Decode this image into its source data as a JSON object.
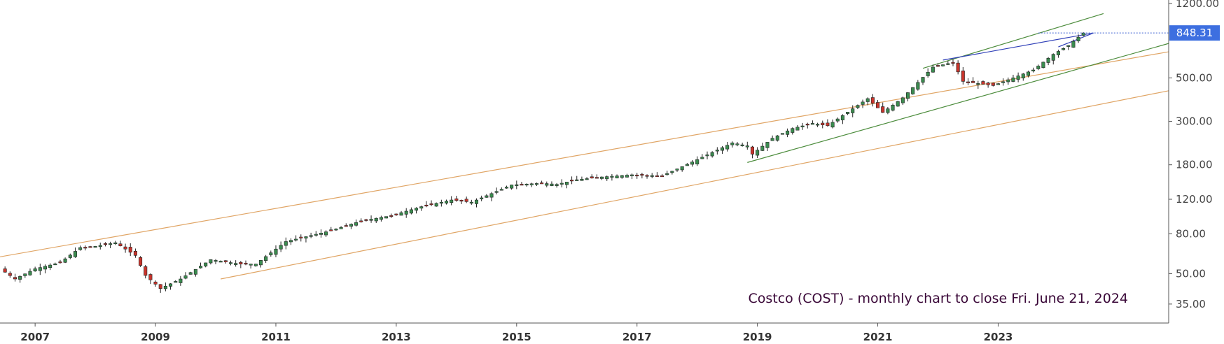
{
  "chart_data": {
    "type": "candlestick",
    "title": "Costco (COST) - monthly chart to close Fri. June 21, 2024",
    "xlabel": "",
    "ylabel": "",
    "y_scale": "log",
    "ylim": [
      28,
      1250
    ],
    "x_range": [
      "2006-06",
      "2025-11"
    ],
    "x_ticks": [
      "2007",
      "2009",
      "2011",
      "2013",
      "2015",
      "2017",
      "2019",
      "2021",
      "2023"
    ],
    "y_ticks": [
      35,
      50,
      80,
      120,
      180,
      300,
      500,
      1200
    ],
    "y_tick_labels": [
      "35.00",
      "50.00",
      "80.00",
      "120.00",
      "180.00",
      "300.00",
      "500.00",
      "1200.00"
    ],
    "last_price": 848.31,
    "last_price_label": "848.31",
    "up_color": "#3a8c4f",
    "down_color": "#c9342c",
    "anchors": [
      [
        "2006-06",
        53
      ],
      [
        "2006-09",
        47
      ],
      [
        "2007-01",
        53
      ],
      [
        "2007-06",
        57
      ],
      [
        "2007-10",
        68
      ],
      [
        "2008-01",
        69
      ],
      [
        "2008-05",
        72
      ],
      [
        "2008-09",
        62
      ],
      [
        "2008-11",
        49
      ],
      [
        "2009-02",
        42
      ],
      [
        "2009-06",
        47
      ],
      [
        "2009-12",
        59
      ],
      [
        "2010-06",
        56
      ],
      [
        "2010-09",
        56
      ],
      [
        "2011-03",
        73
      ],
      [
        "2011-12",
        83
      ],
      [
        "2012-06",
        93
      ],
      [
        "2012-12",
        99
      ],
      [
        "2013-06",
        110
      ],
      [
        "2013-12",
        119
      ],
      [
        "2014-04",
        116
      ],
      [
        "2014-12",
        142
      ],
      [
        "2015-06",
        145
      ],
      [
        "2015-09",
        143
      ],
      [
        "2016-01",
        151
      ],
      [
        "2016-06",
        156
      ],
      [
        "2016-12",
        160
      ],
      [
        "2017-06",
        158
      ],
      [
        "2017-12",
        186
      ],
      [
        "2018-08",
        233
      ],
      [
        "2018-11",
        225
      ],
      [
        "2018-12",
        204
      ],
      [
        "2019-04",
        246
      ],
      [
        "2019-08",
        276
      ],
      [
        "2019-12",
        293
      ],
      [
        "2020-03",
        285
      ],
      [
        "2020-08",
        348
      ],
      [
        "2020-11",
        392
      ],
      [
        "2021-02",
        333
      ],
      [
        "2021-06",
        396
      ],
      [
        "2021-12",
        568
      ],
      [
        "2022-04",
        600
      ],
      [
        "2022-06",
        480
      ],
      [
        "2022-12",
        457
      ],
      [
        "2023-05",
        512
      ],
      [
        "2023-08",
        549
      ],
      [
        "2023-12",
        660
      ],
      [
        "2024-03",
        732
      ],
      [
        "2024-06",
        848.31
      ]
    ],
    "trendlines": [
      {
        "name": "upper-channel",
        "color": "#e0a565",
        "points": [
          [
            "2006-06",
            61
          ],
          [
            "2025-11",
            680
          ]
        ]
      },
      {
        "name": "lower-channel",
        "color": "#e0a565",
        "points": [
          [
            "2010-02",
            47
          ],
          [
            "2025-11",
            430
          ]
        ]
      },
      {
        "name": "green-support",
        "color": "#4c8c3c",
        "points": [
          [
            "2018-11",
            185
          ],
          [
            "2025-11",
            750
          ]
        ]
      },
      {
        "name": "green-resistance",
        "color": "#4c8c3c",
        "points": [
          [
            "2021-10",
            560
          ],
          [
            "2024-10",
            1065
          ]
        ]
      },
      {
        "name": "wedge-top",
        "color": "#3040b8",
        "points": [
          [
            "2022-02",
            617
          ],
          [
            "2024-08",
            848
          ]
        ]
      },
      {
        "name": "wedge-bottom",
        "color": "#3040b8",
        "points": [
          [
            "2024-01",
            720
          ],
          [
            "2024-08",
            848
          ]
        ]
      }
    ]
  }
}
